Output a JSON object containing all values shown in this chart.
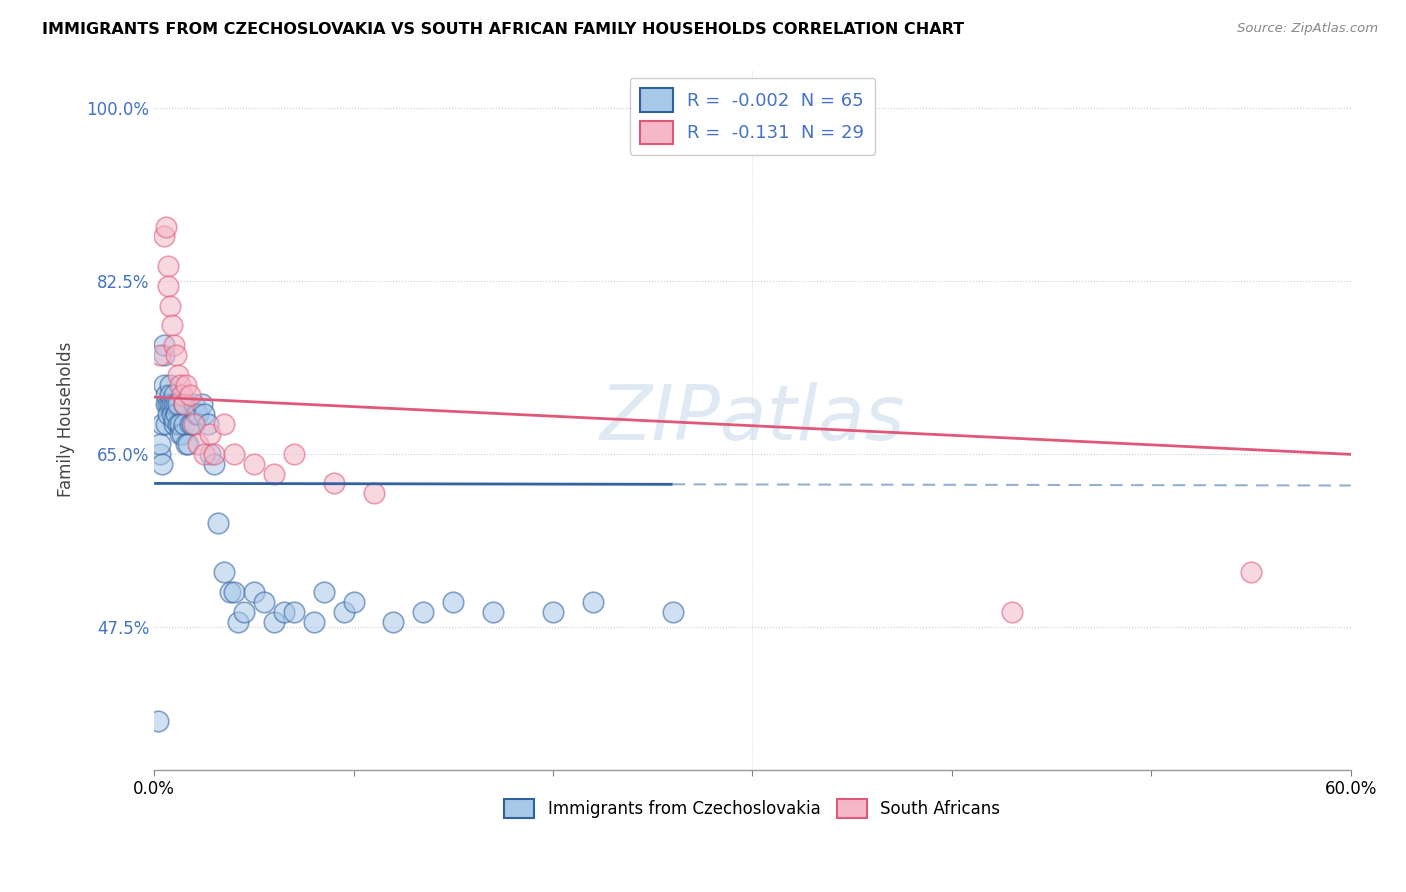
{
  "title": "IMMIGRANTS FROM CZECHOSLOVAKIA VS SOUTH AFRICAN FAMILY HOUSEHOLDS CORRELATION CHART",
  "source": "Source: ZipAtlas.com",
  "ylabel": "Family Households",
  "legend_label_blue": "Immigrants from Czechoslovakia",
  "legend_label_pink": "South Africans",
  "R_blue": -0.002,
  "N_blue": 65,
  "R_pink": -0.131,
  "N_pink": 29,
  "color_blue": "#a8c8e8",
  "color_pink": "#f4b8c8",
  "color_blue_line": "#3060a0",
  "color_pink_line": "#e05878",
  "watermark": "ZIPatlas",
  "xlim": [
    0.0,
    0.6
  ],
  "ylim": [
    0.33,
    1.04
  ],
  "yticks": [
    0.475,
    0.65,
    0.825,
    1.0
  ],
  "ytick_labels": [
    "47.5%",
    "65.0%",
    "82.5%",
    "100.0%"
  ],
  "blue_x": [
    0.002,
    0.003,
    0.003,
    0.004,
    0.004,
    0.005,
    0.005,
    0.005,
    0.006,
    0.006,
    0.006,
    0.007,
    0.007,
    0.008,
    0.008,
    0.008,
    0.009,
    0.009,
    0.01,
    0.01,
    0.01,
    0.01,
    0.011,
    0.011,
    0.012,
    0.012,
    0.013,
    0.013,
    0.014,
    0.015,
    0.015,
    0.016,
    0.017,
    0.018,
    0.019,
    0.02,
    0.021,
    0.022,
    0.024,
    0.025,
    0.027,
    0.028,
    0.03,
    0.032,
    0.035,
    0.038,
    0.04,
    0.042,
    0.045,
    0.05,
    0.055,
    0.06,
    0.065,
    0.07,
    0.08,
    0.085,
    0.095,
    0.1,
    0.12,
    0.135,
    0.15,
    0.17,
    0.2,
    0.22,
    0.26
  ],
  "blue_y": [
    0.38,
    0.65,
    0.66,
    0.64,
    0.68,
    0.75,
    0.76,
    0.72,
    0.7,
    0.71,
    0.68,
    0.7,
    0.69,
    0.72,
    0.7,
    0.71,
    0.7,
    0.69,
    0.68,
    0.685,
    0.7,
    0.71,
    0.7,
    0.69,
    0.7,
    0.68,
    0.67,
    0.68,
    0.67,
    0.7,
    0.68,
    0.66,
    0.66,
    0.68,
    0.68,
    0.7,
    0.69,
    0.69,
    0.7,
    0.69,
    0.68,
    0.65,
    0.64,
    0.58,
    0.53,
    0.51,
    0.51,
    0.48,
    0.49,
    0.51,
    0.5,
    0.48,
    0.49,
    0.49,
    0.48,
    0.51,
    0.49,
    0.5,
    0.48,
    0.49,
    0.5,
    0.49,
    0.49,
    0.5,
    0.49
  ],
  "pink_x": [
    0.003,
    0.005,
    0.006,
    0.007,
    0.007,
    0.008,
    0.009,
    0.01,
    0.011,
    0.012,
    0.013,
    0.014,
    0.015,
    0.016,
    0.018,
    0.02,
    0.022,
    0.025,
    0.028,
    0.03,
    0.035,
    0.04,
    0.05,
    0.06,
    0.07,
    0.09,
    0.11,
    0.43,
    0.55
  ],
  "pink_y": [
    0.75,
    0.87,
    0.88,
    0.84,
    0.82,
    0.8,
    0.78,
    0.76,
    0.75,
    0.73,
    0.72,
    0.71,
    0.7,
    0.72,
    0.71,
    0.68,
    0.66,
    0.65,
    0.67,
    0.65,
    0.68,
    0.65,
    0.64,
    0.63,
    0.65,
    0.62,
    0.61,
    0.49,
    0.53
  ],
  "blue_line_solid_x_end": 0.25,
  "blue_line_intercept": 0.652,
  "blue_line_slope": -0.002,
  "pink_line_intercept": 0.718,
  "pink_line_slope": -0.22
}
